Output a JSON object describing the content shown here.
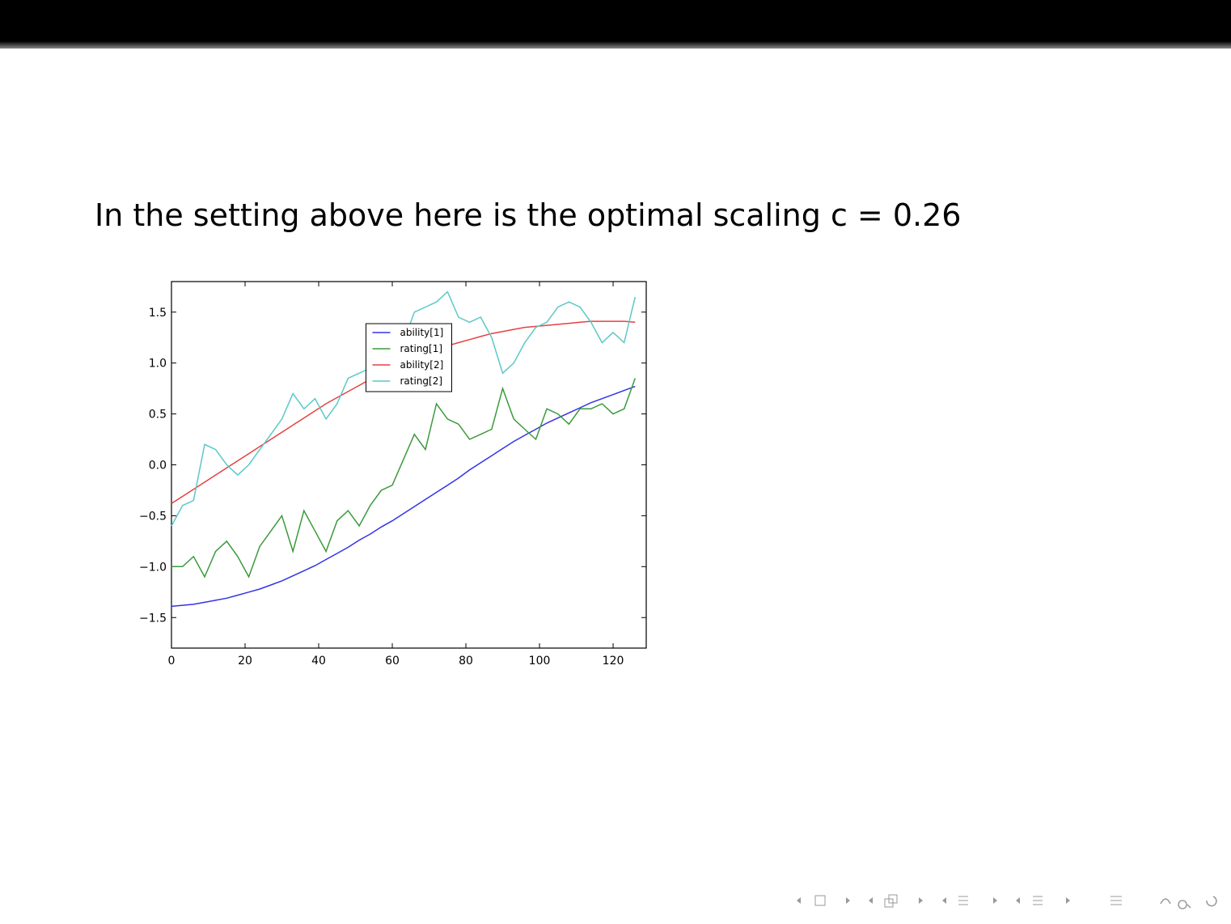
{
  "heading": "In the setting above here is the optimal scaling c = 0.26",
  "chart_data": {
    "type": "line",
    "x": [
      0,
      3,
      6,
      9,
      12,
      15,
      18,
      21,
      24,
      27,
      30,
      33,
      36,
      39,
      42,
      45,
      48,
      51,
      54,
      57,
      60,
      63,
      66,
      69,
      72,
      75,
      78,
      81,
      84,
      87,
      90,
      93,
      96,
      99,
      102,
      105,
      108,
      111,
      114,
      117,
      120,
      123,
      126
    ],
    "series": [
      {
        "name": "ability[1]",
        "color": "#3333e6",
        "values": [
          -1.39,
          -1.38,
          -1.37,
          -1.35,
          -1.33,
          -1.31,
          -1.28,
          -1.25,
          -1.22,
          -1.18,
          -1.14,
          -1.09,
          -1.04,
          -0.99,
          -0.93,
          -0.87,
          -0.81,
          -0.74,
          -0.68,
          -0.61,
          -0.55,
          -0.48,
          -0.41,
          -0.34,
          -0.27,
          -0.2,
          -0.13,
          -0.05,
          0.02,
          0.09,
          0.16,
          0.23,
          0.29,
          0.35,
          0.41,
          0.46,
          0.51,
          0.56,
          0.61,
          0.65,
          0.69,
          0.73,
          0.77
        ]
      },
      {
        "name": "rating[1]",
        "color": "#3c9a3c",
        "values": [
          -1.0,
          -1.0,
          -0.9,
          -1.1,
          -0.85,
          -0.75,
          -0.9,
          -1.1,
          -0.8,
          -0.65,
          -0.5,
          -0.85,
          -0.45,
          -0.65,
          -0.85,
          -0.55,
          -0.45,
          -0.6,
          -0.4,
          -0.25,
          -0.2,
          0.05,
          0.3,
          0.15,
          0.6,
          0.45,
          0.4,
          0.25,
          0.3,
          0.35,
          0.75,
          0.45,
          0.35,
          0.25,
          0.55,
          0.5,
          0.4,
          0.55,
          0.55,
          0.6,
          0.5,
          0.55,
          0.85
        ]
      },
      {
        "name": "ability[2]",
        "color": "#e64040",
        "values": [
          -0.38,
          -0.31,
          -0.24,
          -0.17,
          -0.1,
          -0.03,
          0.04,
          0.11,
          0.18,
          0.25,
          0.32,
          0.39,
          0.46,
          0.53,
          0.6,
          0.66,
          0.72,
          0.78,
          0.84,
          0.9,
          0.95,
          1.0,
          1.05,
          1.09,
          1.13,
          1.17,
          1.2,
          1.23,
          1.26,
          1.29,
          1.31,
          1.33,
          1.35,
          1.36,
          1.37,
          1.38,
          1.39,
          1.4,
          1.41,
          1.41,
          1.41,
          1.41,
          1.4
        ]
      },
      {
        "name": "rating[2]",
        "color": "#5cc8c8",
        "values": [
          -0.6,
          -0.4,
          -0.35,
          0.2,
          0.15,
          0.0,
          -0.1,
          0.0,
          0.15,
          0.3,
          0.45,
          0.7,
          0.55,
          0.65,
          0.45,
          0.6,
          0.85,
          0.9,
          0.95,
          1.0,
          1.05,
          1.2,
          1.5,
          1.55,
          1.6,
          1.7,
          1.45,
          1.4,
          1.45,
          1.25,
          0.9,
          1.0,
          1.2,
          1.35,
          1.4,
          1.55,
          1.6,
          1.55,
          1.4,
          1.2,
          1.3,
          1.2,
          1.65
        ]
      }
    ],
    "xlim": [
      0,
      129
    ],
    "ylim": [
      -1.8,
      1.8
    ],
    "xticks": [
      0,
      20,
      40,
      60,
      80,
      100,
      120
    ],
    "yticks": [
      {
        "value": -1.5,
        "label": "−1.5"
      },
      {
        "value": -1.0,
        "label": "−1.0"
      },
      {
        "value": -0.5,
        "label": "−0.5"
      },
      {
        "value": 0,
        "label": "0.0"
      },
      {
        "value": 0.5,
        "label": "0.5"
      },
      {
        "value": 1.0,
        "label": "1.0"
      },
      {
        "value": 1.5,
        "label": "1.5"
      }
    ],
    "legend": "upper center"
  }
}
